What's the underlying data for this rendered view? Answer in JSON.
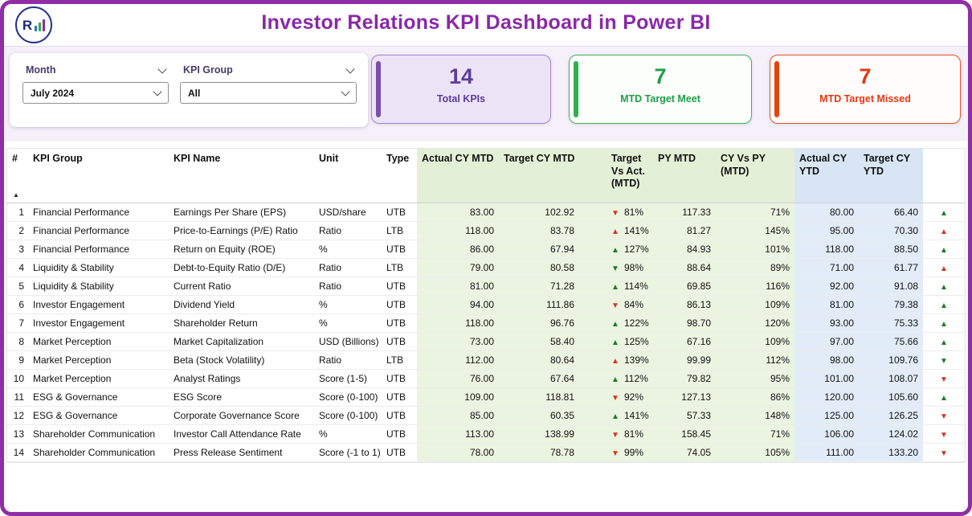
{
  "app": {
    "title": "Investor Relations KPI Dashboard in Power BI",
    "logo_letter": "R"
  },
  "filters": {
    "month_label": "Month",
    "month_value": "July 2024",
    "group_label": "KPI Group",
    "group_value": "All"
  },
  "cards": {
    "total": {
      "value": "14",
      "label": "Total KPIs"
    },
    "meet": {
      "value": "7",
      "label": "MTD Target Meet"
    },
    "missed": {
      "value": "7",
      "label": "MTD Target Missed"
    }
  },
  "icons": {
    "up": "▲",
    "down": "▼",
    "sort": "▲"
  },
  "table": {
    "headers": {
      "num": "#",
      "group": "KPI Group",
      "name": "KPI Name",
      "unit": "Unit",
      "type": "Type",
      "actual_mtd": "Actual CY MTD",
      "target_mtd": "Target CY MTD",
      "tva": "Target Vs Act. (MTD)",
      "py_mtd": "PY MTD",
      "cy_py": "CY Vs PY (MTD)",
      "actual_ytd": "Actual CY YTD",
      "target_ytd": "Target CY YTD",
      "indicator": ""
    },
    "rows": [
      {
        "n": "1",
        "group": "Financial Performance",
        "name": "Earnings Per Share (EPS)",
        "unit": "USD/share",
        "type": "UTB",
        "a_mtd": "83.00",
        "t_mtd": "102.92",
        "tva_dir": "down",
        "tva_st": "red",
        "tva_pct": "81%",
        "py": "117.33",
        "cypy": "71%",
        "a_ytd": "80.00",
        "t_ytd": "66.40",
        "ind_dir": "up",
        "ind_st": "green"
      },
      {
        "n": "2",
        "group": "Financial Performance",
        "name": "Price-to-Earnings (P/E) Ratio",
        "unit": "Ratio",
        "type": "LTB",
        "a_mtd": "118.00",
        "t_mtd": "83.78",
        "tva_dir": "up",
        "tva_st": "red",
        "tva_pct": "141%",
        "py": "81.27",
        "cypy": "145%",
        "a_ytd": "95.00",
        "t_ytd": "70.30",
        "ind_dir": "up",
        "ind_st": "red"
      },
      {
        "n": "3",
        "group": "Financial Performance",
        "name": "Return on Equity (ROE)",
        "unit": "%",
        "type": "UTB",
        "a_mtd": "86.00",
        "t_mtd": "67.94",
        "tva_dir": "up",
        "tva_st": "green",
        "tva_pct": "127%",
        "py": "84.93",
        "cypy": "101%",
        "a_ytd": "118.00",
        "t_ytd": "88.50",
        "ind_dir": "up",
        "ind_st": "green"
      },
      {
        "n": "4",
        "group": "Liquidity & Stability",
        "name": "Debt-to-Equity Ratio (D/E)",
        "unit": "Ratio",
        "type": "LTB",
        "a_mtd": "79.00",
        "t_mtd": "80.58",
        "tva_dir": "down",
        "tva_st": "green",
        "tva_pct": "98%",
        "py": "88.64",
        "cypy": "89%",
        "a_ytd": "71.00",
        "t_ytd": "61.77",
        "ind_dir": "up",
        "ind_st": "red"
      },
      {
        "n": "5",
        "group": "Liquidity & Stability",
        "name": "Current Ratio",
        "unit": "Ratio",
        "type": "UTB",
        "a_mtd": "81.00",
        "t_mtd": "71.28",
        "tva_dir": "up",
        "tva_st": "green",
        "tva_pct": "114%",
        "py": "69.85",
        "cypy": "116%",
        "a_ytd": "92.00",
        "t_ytd": "91.08",
        "ind_dir": "up",
        "ind_st": "green"
      },
      {
        "n": "6",
        "group": "Investor Engagement",
        "name": "Dividend Yield",
        "unit": "%",
        "type": "UTB",
        "a_mtd": "94.00",
        "t_mtd": "111.86",
        "tva_dir": "down",
        "tva_st": "red",
        "tva_pct": "84%",
        "py": "86.13",
        "cypy": "109%",
        "a_ytd": "81.00",
        "t_ytd": "79.38",
        "ind_dir": "up",
        "ind_st": "green"
      },
      {
        "n": "7",
        "group": "Investor Engagement",
        "name": "Shareholder Return",
        "unit": "%",
        "type": "UTB",
        "a_mtd": "118.00",
        "t_mtd": "96.76",
        "tva_dir": "up",
        "tva_st": "green",
        "tva_pct": "122%",
        "py": "98.70",
        "cypy": "120%",
        "a_ytd": "93.00",
        "t_ytd": "75.33",
        "ind_dir": "up",
        "ind_st": "green"
      },
      {
        "n": "8",
        "group": "Market Perception",
        "name": "Market Capitalization",
        "unit": "USD (Billions)",
        "type": "UTB",
        "a_mtd": "73.00",
        "t_mtd": "58.40",
        "tva_dir": "up",
        "tva_st": "green",
        "tva_pct": "125%",
        "py": "67.16",
        "cypy": "109%",
        "a_ytd": "97.00",
        "t_ytd": "75.66",
        "ind_dir": "up",
        "ind_st": "green"
      },
      {
        "n": "9",
        "group": "Market Perception",
        "name": "Beta (Stock Volatility)",
        "unit": "Ratio",
        "type": "LTB",
        "a_mtd": "112.00",
        "t_mtd": "80.64",
        "tva_dir": "up",
        "tva_st": "red",
        "tva_pct": "139%",
        "py": "99.99",
        "cypy": "112%",
        "a_ytd": "98.00",
        "t_ytd": "109.76",
        "ind_dir": "down",
        "ind_st": "green"
      },
      {
        "n": "10",
        "group": "Market Perception",
        "name": "Analyst Ratings",
        "unit": "Score (1-5)",
        "type": "UTB",
        "a_mtd": "76.00",
        "t_mtd": "67.64",
        "tva_dir": "up",
        "tva_st": "green",
        "tva_pct": "112%",
        "py": "79.82",
        "cypy": "95%",
        "a_ytd": "101.00",
        "t_ytd": "108.07",
        "ind_dir": "down",
        "ind_st": "red"
      },
      {
        "n": "11",
        "group": "ESG & Governance",
        "name": "ESG Score",
        "unit": "Score (0-100)",
        "type": "UTB",
        "a_mtd": "109.00",
        "t_mtd": "118.81",
        "tva_dir": "down",
        "tva_st": "red",
        "tva_pct": "92%",
        "py": "127.13",
        "cypy": "86%",
        "a_ytd": "120.00",
        "t_ytd": "105.60",
        "ind_dir": "up",
        "ind_st": "green"
      },
      {
        "n": "12",
        "group": "ESG & Governance",
        "name": "Corporate Governance Score",
        "unit": "Score (0-100)",
        "type": "UTB",
        "a_mtd": "85.00",
        "t_mtd": "60.35",
        "tva_dir": "up",
        "tva_st": "green",
        "tva_pct": "141%",
        "py": "57.33",
        "cypy": "148%",
        "a_ytd": "125.00",
        "t_ytd": "126.25",
        "ind_dir": "down",
        "ind_st": "red"
      },
      {
        "n": "13",
        "group": "Shareholder Communication",
        "name": "Investor Call Attendance Rate",
        "unit": "%",
        "type": "UTB",
        "a_mtd": "113.00",
        "t_mtd": "138.99",
        "tva_dir": "down",
        "tva_st": "red",
        "tva_pct": "81%",
        "py": "158.45",
        "cypy": "71%",
        "a_ytd": "106.00",
        "t_ytd": "124.02",
        "ind_dir": "down",
        "ind_st": "red"
      },
      {
        "n": "14",
        "group": "Shareholder Communication",
        "name": "Press Release Sentiment",
        "unit": "Score (-1 to 1)",
        "type": "UTB",
        "a_mtd": "78.00",
        "t_mtd": "78.78",
        "tva_dir": "down",
        "tva_st": "red",
        "tva_pct": "99%",
        "py": "74.05",
        "cypy": "105%",
        "a_ytd": "111.00",
        "t_ytd": "133.20",
        "ind_dir": "down",
        "ind_st": "red"
      }
    ]
  },
  "colors": {
    "frame_purple": "#8E2FA6",
    "title_purple": "#8A28A8",
    "band_bg": "#F5F0FA",
    "card_total_bg": "#ECE4F6",
    "card_total_border": "#A882CC",
    "card_total_accent": "#7A4FA8",
    "card_total_text": "#5C3D9C",
    "card_meet_bg": "#FBFEFB",
    "card_meet_border": "#3FB05C",
    "card_meet_accent": "#2FAF4F",
    "card_meet_text": "#1F9E48",
    "card_missed_bg": "#FFFCFB",
    "card_missed_border": "#E2562B",
    "card_missed_accent": "#E8430F",
    "card_missed_text": "#E23813",
    "green_col": "#EBF4E1",
    "header_green": "#E4F0D6",
    "blue_col": "#E2ECF8",
    "header_blue": "#D7E5F4",
    "arrow_green": "#12801C",
    "arrow_red": "#D5331F"
  }
}
